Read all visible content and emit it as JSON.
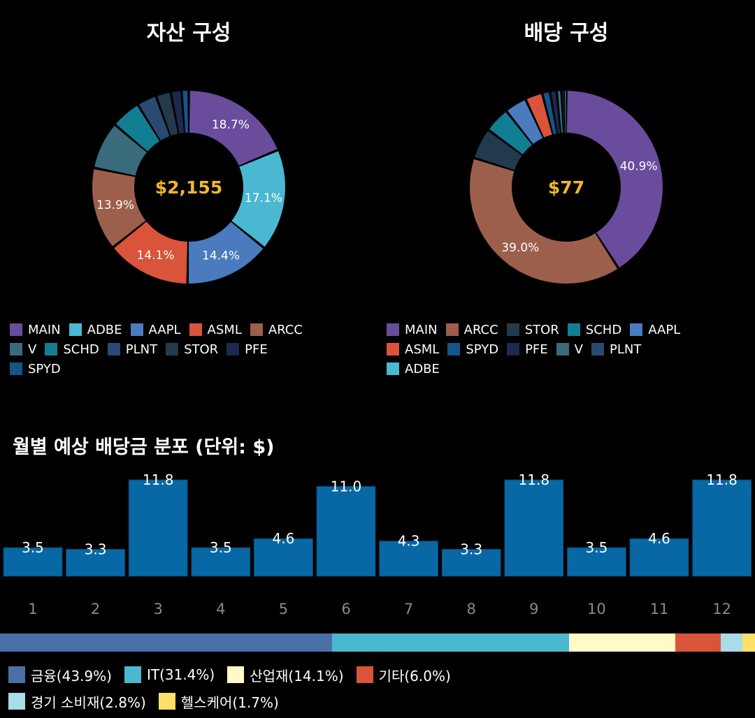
{
  "colors": {
    "MAIN": "#6a4c9c",
    "ADBE": "#4ab8d1",
    "AAPL": "#4a7bbf",
    "ASML": "#d9543a",
    "ARCC": "#9c5f4c",
    "V": "#3a6b7a",
    "SCHD": "#117e94",
    "PLNT": "#2a4a73",
    "STOR": "#223a4c",
    "PFE": "#1b2a4d",
    "SPYD": "#14558a"
  },
  "chart_data": [
    {
      "type": "pie",
      "title": "자산 구성",
      "center_label": "$2,155",
      "slices": [
        {
          "name": "MAIN",
          "value": 18.7,
          "label": "18.7%"
        },
        {
          "name": "ADBE",
          "value": 17.1,
          "label": "17.1%"
        },
        {
          "name": "AAPL",
          "value": 14.4,
          "label": "14.4%"
        },
        {
          "name": "ASML",
          "value": 14.1,
          "label": "14.1%"
        },
        {
          "name": "ARCC",
          "value": 13.9,
          "label": "13.9%"
        },
        {
          "name": "V",
          "value": 8.0,
          "label": ""
        },
        {
          "name": "SCHD",
          "value": 5.0,
          "label": ""
        },
        {
          "name": "PLNT",
          "value": 3.3,
          "label": ""
        },
        {
          "name": "STOR",
          "value": 2.5,
          "label": ""
        },
        {
          "name": "PFE",
          "value": 1.8,
          "label": ""
        },
        {
          "name": "SPYD",
          "value": 1.2,
          "label": ""
        }
      ],
      "legend": [
        "MAIN",
        "ADBE",
        "AAPL",
        "ASML",
        "ARCC",
        "V",
        "SCHD",
        "PLNT",
        "STOR",
        "PFE",
        "SPYD"
      ]
    },
    {
      "type": "pie",
      "title": "배당 구성",
      "center_label": "$77",
      "slices": [
        {
          "name": "MAIN",
          "value": 40.9,
          "label": "40.9%"
        },
        {
          "name": "ARCC",
          "value": 39.0,
          "label": "39.0%"
        },
        {
          "name": "STOR",
          "value": 5.2,
          "label": ""
        },
        {
          "name": "SCHD",
          "value": 4.3,
          "label": ""
        },
        {
          "name": "AAPL",
          "value": 3.7,
          "label": ""
        },
        {
          "name": "ASML",
          "value": 2.9,
          "label": ""
        },
        {
          "name": "SPYD",
          "value": 1.3,
          "label": ""
        },
        {
          "name": "PFE",
          "value": 1.1,
          "label": ""
        },
        {
          "name": "V",
          "value": 0.8,
          "label": ""
        },
        {
          "name": "PLNT",
          "value": 0.5,
          "label": ""
        },
        {
          "name": "ADBE",
          "value": 0.3,
          "label": ""
        }
      ],
      "legend": [
        "MAIN",
        "ARCC",
        "STOR",
        "SCHD",
        "AAPL",
        "ASML",
        "SPYD",
        "PFE",
        "V",
        "PLNT",
        "ADBE"
      ]
    },
    {
      "type": "bar",
      "title": "월별 예상 배당금 분포 (단위: $)",
      "categories": [
        "1",
        "2",
        "3",
        "4",
        "5",
        "6",
        "7",
        "8",
        "9",
        "10",
        "11",
        "12"
      ],
      "values": [
        3.5,
        3.3,
        11.8,
        3.5,
        4.6,
        11.0,
        4.3,
        3.3,
        11.8,
        3.5,
        4.6,
        11.8
      ],
      "labels": [
        "3.5",
        "3.3",
        "11.8",
        "3.5",
        "4.6",
        "11.0",
        "4.3",
        "3.3",
        "11.8",
        "3.5",
        "4.6",
        "11.8"
      ],
      "ylim": [
        0,
        11.8
      ],
      "color": "#0868a6"
    },
    {
      "type": "bar",
      "stacked": true,
      "segments": [
        {
          "name": "금융",
          "value": 43.9,
          "label": "금융(43.9%)",
          "color": "#4a70a8"
        },
        {
          "name": "IT",
          "value": 31.4,
          "label": "IT(31.4%)",
          "color": "#4ab8d1"
        },
        {
          "name": "산업재",
          "value": 14.1,
          "label": "산업재(14.1%)",
          "color": "#fffac8"
        },
        {
          "name": "기타",
          "value": 6.0,
          "label": "기타(6.0%)",
          "color": "#d9543a"
        },
        {
          "name": "경기 소비재",
          "value": 2.8,
          "label": "경기 소비재(2.8%)",
          "color": "#a8dce6"
        },
        {
          "name": "헬스케어",
          "value": 1.7,
          "label": "헬스케어(1.7%)",
          "color": "#ffe066"
        }
      ]
    }
  ]
}
